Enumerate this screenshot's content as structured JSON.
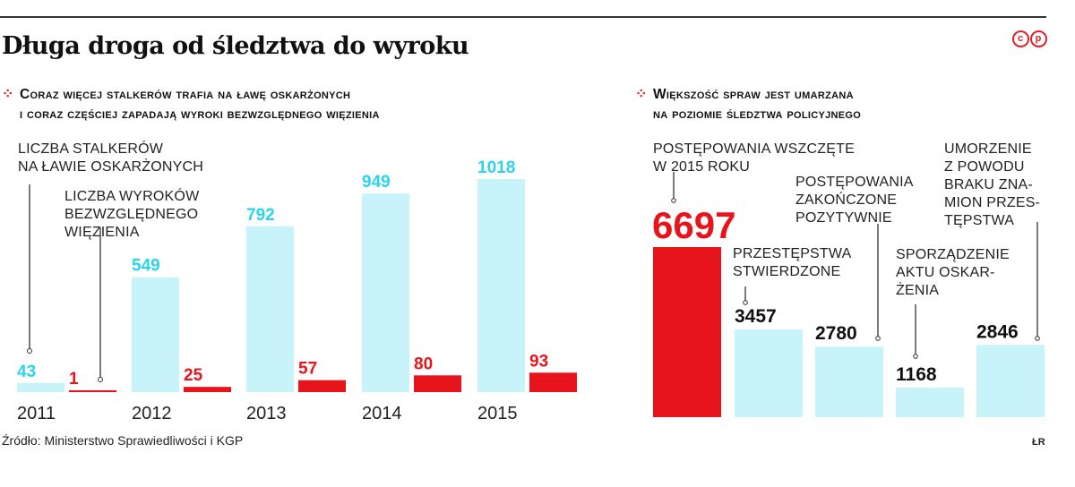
{
  "header": {
    "title": "Długa droga od śledztwa do wyroku",
    "logo": "cp"
  },
  "left_panel": {
    "subtitle": [
      "Coraz więcej stalkerów trafia na ławę oskarżonych",
      "i coraz częściej zapadają wyroki bezwzględnego więzienia"
    ],
    "label_accused": [
      "LICZBA STALKERÓW",
      "NA ŁAWIE OSKARŻONYCH"
    ],
    "label_sentences": [
      "LICZBA WYROKÓW",
      "BEZWZGLĘDNEGO",
      "WIĘZIENIA"
    ]
  },
  "right_panel": {
    "subtitle": [
      "Większość spraw jest umarzana",
      "na poziomie śledztwa policyjnego"
    ],
    "label_initiated": [
      "POSTĘPOWANIA WSZCZĘTE",
      "W 2015 ROKU"
    ],
    "label_found": [
      "PRZESTĘPSTWA",
      "STWIERDZONE"
    ],
    "label_positive": [
      "POSTĘPOWANIA",
      "ZAKOŃCZONE",
      "POZYTYWNIE"
    ],
    "label_indictment": [
      "SPORZĄDZENIE",
      "AKTU OSKAR-",
      "ŻENIA"
    ],
    "label_discontinued": [
      "UMORZENIE",
      "Z POWODU",
      "BRAKU ZNA-",
      "MION PRZES-",
      "TĘPSTWA"
    ]
  },
  "footer": {
    "source": "Źródło: Ministerstwo Sprawiedliwości i KGP",
    "credit": "ŁR"
  },
  "chart_data": [
    {
      "type": "bar",
      "categories": [
        "2011",
        "2012",
        "2013",
        "2014",
        "2015"
      ],
      "series": [
        {
          "name": "LICZBA STALKERÓW NA ŁAWIE OSKARŻONYCH",
          "values": [
            43,
            549,
            792,
            949,
            1018
          ],
          "color": "#c8f4f9",
          "label_color": "#2ad4ec"
        },
        {
          "name": "LICZBA WYROKÓW BEZWZGLĘDNEGO WIĘZIENIA",
          "values": [
            1,
            25,
            57,
            80,
            93
          ],
          "color": "#e8141c",
          "label_color": "#e8141c"
        }
      ],
      "title": "Coraz więcej stalkerów trafia na ławę oskarżonych i coraz częściej zapadają wyroki bezwzględnego więzienia",
      "xlabel": "",
      "ylabel": "",
      "ylim": [
        0,
        1018
      ],
      "grid": false
    },
    {
      "type": "bar",
      "categories": [
        "POSTĘPOWANIA WSZCZĘTE W 2015 ROKU",
        "PRZESTĘPSTWA STWIERDZONE",
        "POSTĘPOWANIA ZAKOŃCZONE POZYTYWNIE",
        "SPORZĄDZENIE AKTU OSKARŻENIA",
        "UMORZENIE Z POWODU BRAKU ZNAMION PRZESTĘPSTWA"
      ],
      "values": [
        6697,
        3457,
        2780,
        1168,
        2846
      ],
      "colors": [
        "#e8141c",
        "#c8f4f9",
        "#c8f4f9",
        "#c8f4f9",
        "#c8f4f9"
      ],
      "label_colors": [
        "#e8141c",
        "#111111",
        "#111111",
        "#111111",
        "#111111"
      ],
      "title": "Większość spraw jest umarzana na poziomie śledztwa policyjnego",
      "xlabel": "",
      "ylabel": "",
      "ylim": [
        0,
        6697
      ],
      "grid": false
    }
  ]
}
